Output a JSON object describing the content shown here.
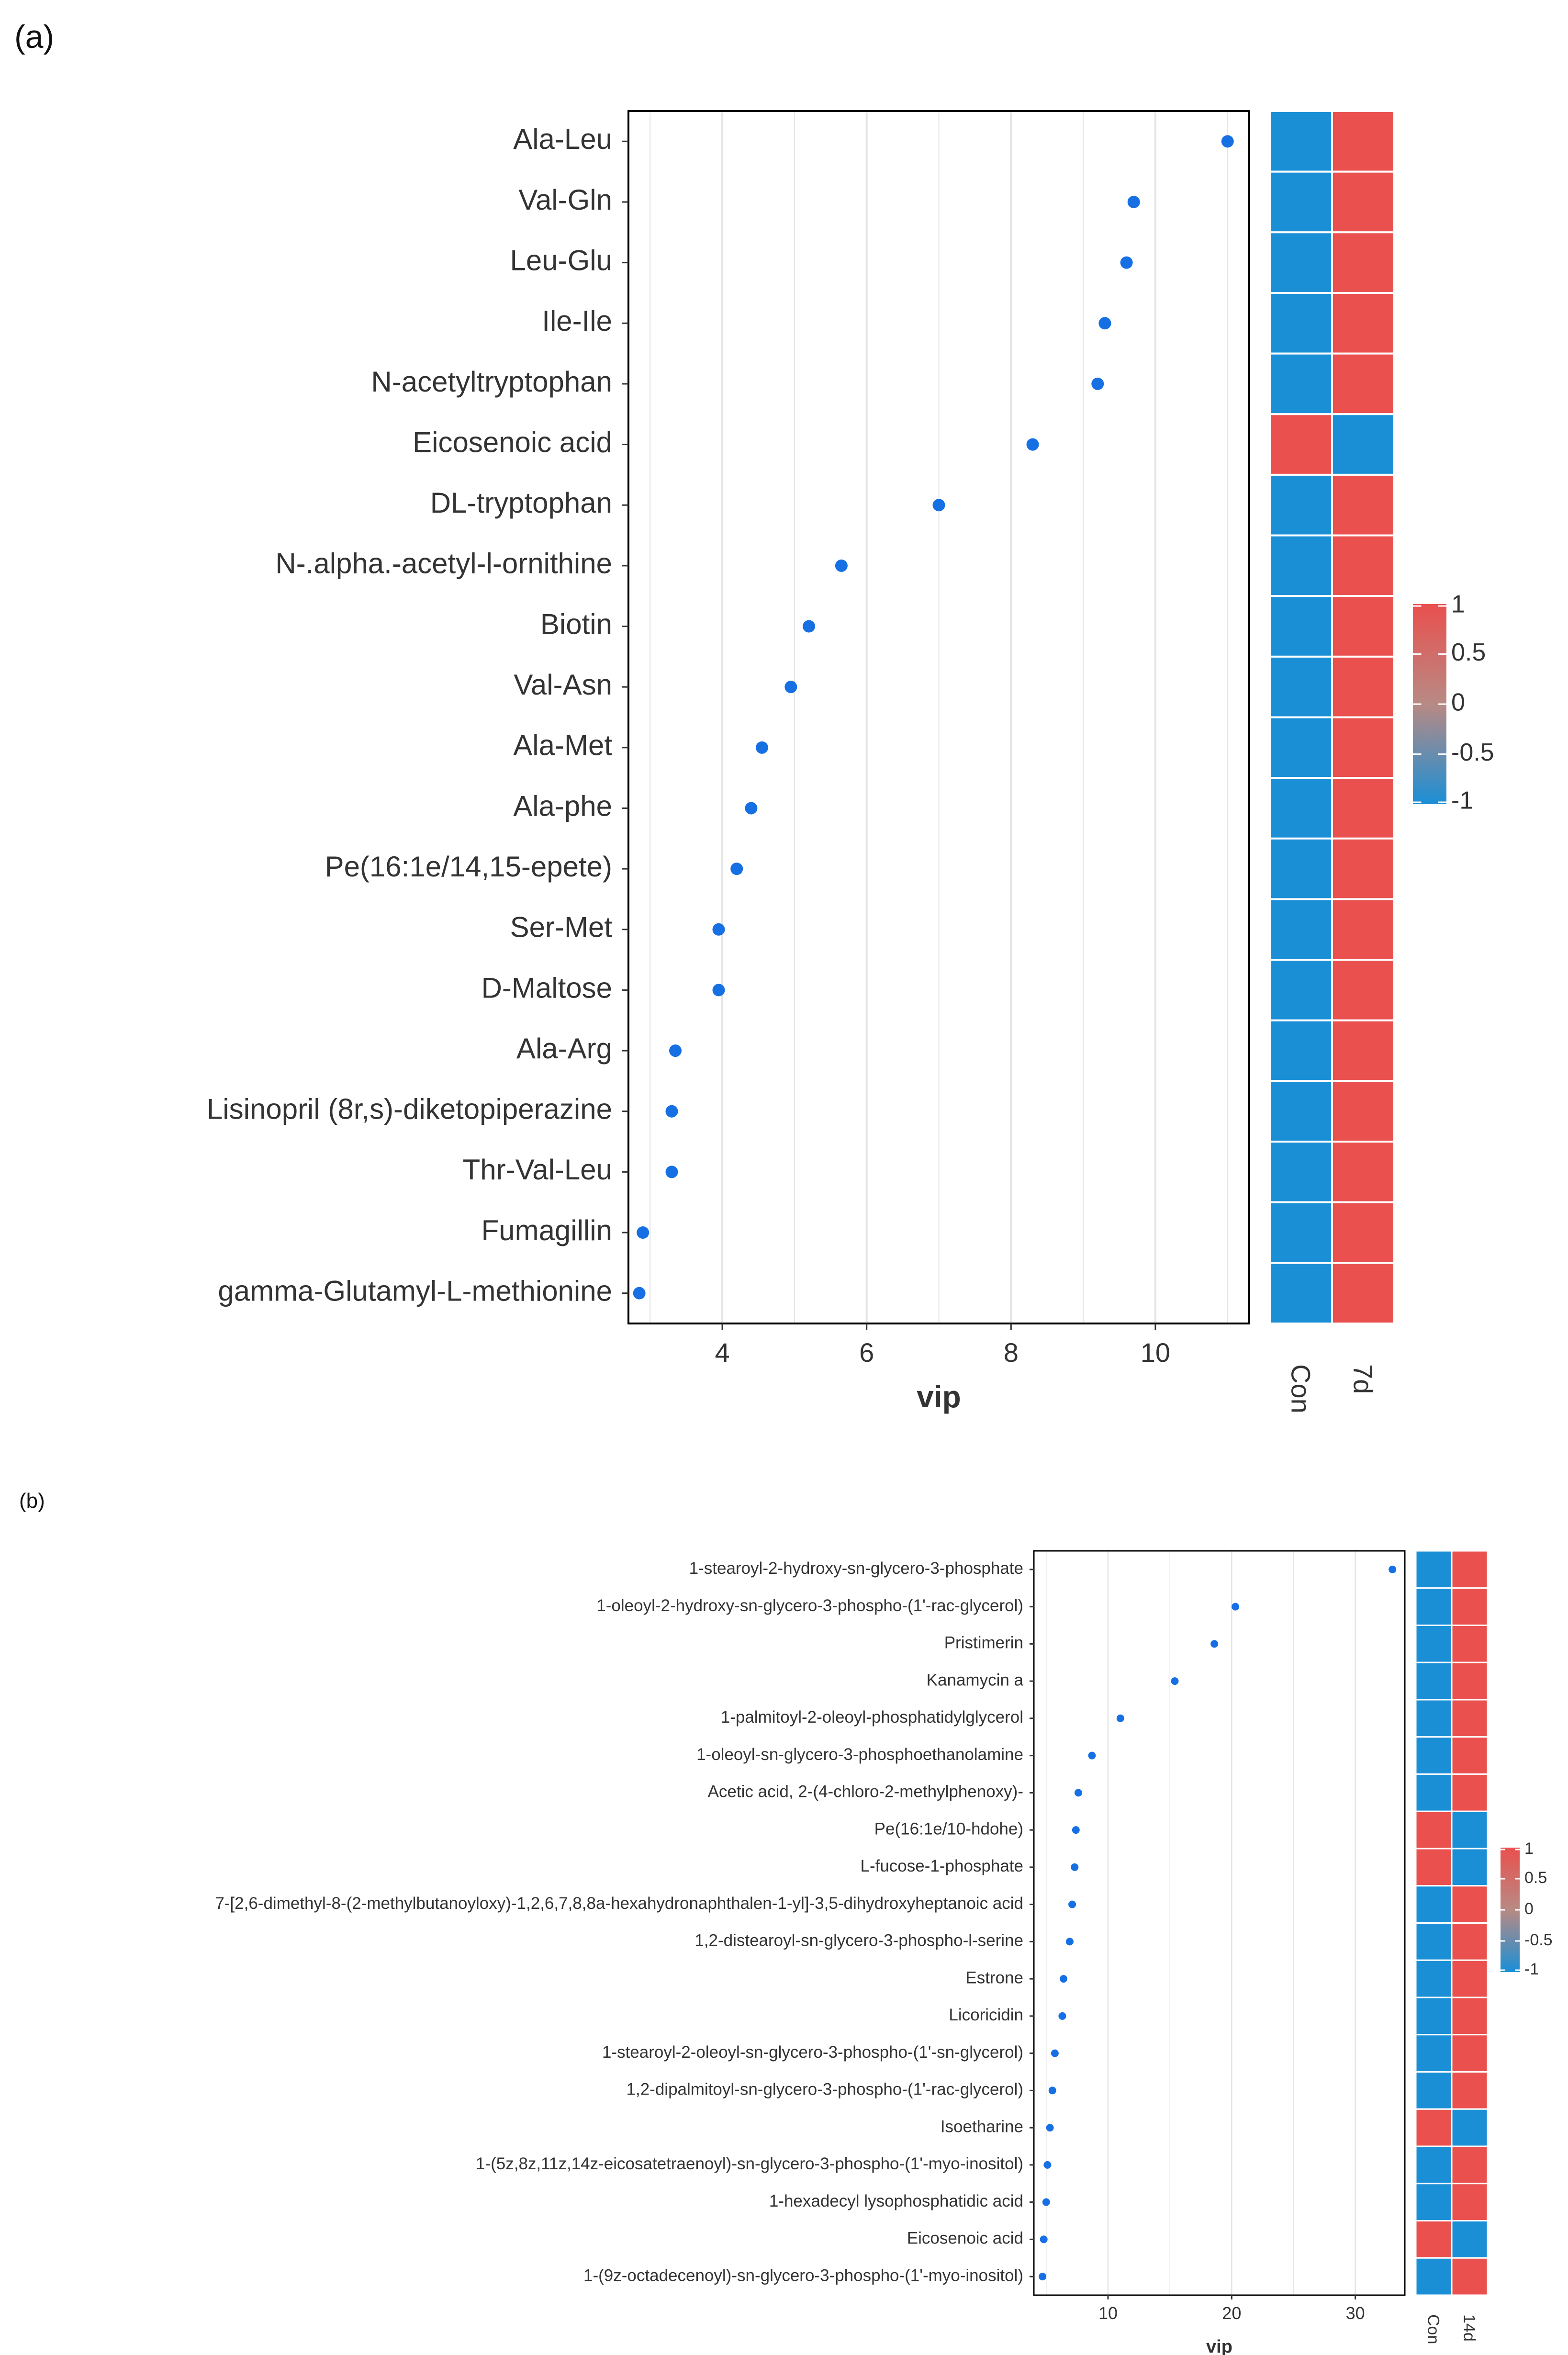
{
  "colors": {
    "point": "#1670E4",
    "heat_high": "#E9504E",
    "heat_low": "#1A8FD6",
    "heat_mid": "#B88A84",
    "grid": "#E4E4E4",
    "text": "#333333",
    "frame": "#000000"
  },
  "chart_data": [
    {
      "type": "scatter",
      "panel_label": "(a)",
      "xlabel": "vip",
      "xlim": [
        2.7,
        11.3
      ],
      "x_ticks": [
        4,
        6,
        8,
        10
      ],
      "x_tick_labels": [
        "4",
        "6",
        "8",
        "10"
      ],
      "grid": true,
      "categories": [
        "Ala-Leu",
        "Val-Gln",
        "Leu-Glu",
        "Ile-Ile",
        "N-acetyltryptophan",
        "Eicosenoic acid",
        "DL-tryptophan",
        "N-.alpha.-acetyl-l-ornithine",
        "Biotin",
        "Val-Asn",
        "Ala-Met",
        "Ala-phe",
        "Pe(16:1e/14,15-epete)",
        "Ser-Met",
        "D-Maltose",
        "Ala-Arg",
        "Lisinopril (8r,s)-diketopiperazine",
        "Thr-Val-Leu",
        "Fumagillin",
        "gamma-Glutamyl-L-methionine"
      ],
      "values": [
        11.0,
        9.7,
        9.6,
        9.3,
        9.2,
        8.3,
        7.0,
        5.65,
        5.2,
        4.95,
        4.55,
        4.4,
        4.2,
        3.95,
        3.95,
        3.35,
        3.3,
        3.3,
        2.9,
        2.85
      ],
      "heatmap": {
        "columns": [
          "Con",
          "7d"
        ],
        "values": [
          [
            -1,
            1
          ],
          [
            -1,
            1
          ],
          [
            -1,
            1
          ],
          [
            -1,
            1
          ],
          [
            -1,
            1
          ],
          [
            1,
            -1
          ],
          [
            -1,
            1
          ],
          [
            -1,
            1
          ],
          [
            -1,
            1
          ],
          [
            -1,
            1
          ],
          [
            -1,
            1
          ],
          [
            -1,
            1
          ],
          [
            -1,
            1
          ],
          [
            -1,
            1
          ],
          [
            -1,
            1
          ],
          [
            -1,
            1
          ],
          [
            -1,
            1
          ],
          [
            -1,
            1
          ],
          [
            -1,
            1
          ],
          [
            -1,
            1
          ]
        ]
      },
      "legend": {
        "position": "right",
        "range": [
          -1,
          1
        ],
        "labels": [
          "1",
          "0.5",
          "0",
          "-0.5",
          "-1"
        ]
      }
    },
    {
      "type": "scatter",
      "panel_label": "(b)",
      "xlabel": "vip",
      "xlim": [
        4.0,
        34.0
      ],
      "x_ticks": [
        10,
        20,
        30
      ],
      "x_tick_labels": [
        "10",
        "20",
        "30"
      ],
      "grid": true,
      "categories": [
        "1-stearoyl-2-hydroxy-sn-glycero-3-phosphate",
        "1-oleoyl-2-hydroxy-sn-glycero-3-phospho-(1'-rac-glycerol)",
        "Pristimerin",
        "Kanamycin a",
        "1-palmitoyl-2-oleoyl-phosphatidylglycerol",
        "1-oleoyl-sn-glycero-3-phosphoethanolamine",
        "Acetic acid, 2-(4-chloro-2-methylphenoxy)-",
        "Pe(16:1e/10-hdohe)",
        "L-fucose-1-phosphate",
        "7-[2,6-dimethyl-8-(2-methylbutanoyloxy)-1,2,6,7,8,8a-hexahydronaphthalen-1-yl]-3,5-dihydroxyheptanoic acid",
        "1,2-distearoyl-sn-glycero-3-phospho-l-serine",
        "Estrone",
        "Licoricidin",
        "1-stearoyl-2-oleoyl-sn-glycero-3-phospho-(1'-sn-glycerol)",
        "1,2-dipalmitoyl-sn-glycero-3-phospho-(1'-rac-glycerol)",
        "Isoetharine",
        "1-(5z,8z,11z,14z-eicosatetraenoyl)-sn-glycero-3-phospho-(1'-myo-inositol)",
        "1-hexadecyl lysophosphatidic acid",
        "Eicosenoic acid",
        "1-(9z-octadecenoyl)-sn-glycero-3-phospho-(1'-myo-inositol)"
      ],
      "values": [
        33.0,
        20.3,
        18.6,
        15.4,
        11.0,
        8.7,
        7.6,
        7.4,
        7.3,
        7.1,
        6.9,
        6.4,
        6.3,
        5.7,
        5.5,
        5.3,
        5.1,
        5.0,
        4.8,
        4.7
      ],
      "heatmap": {
        "columns": [
          "Con",
          "14d"
        ],
        "values": [
          [
            -1,
            1
          ],
          [
            -1,
            1
          ],
          [
            -1,
            1
          ],
          [
            -1,
            1
          ],
          [
            -1,
            1
          ],
          [
            -1,
            1
          ],
          [
            -1,
            1
          ],
          [
            1,
            -1
          ],
          [
            1,
            -1
          ],
          [
            -1,
            1
          ],
          [
            -1,
            1
          ],
          [
            -1,
            1
          ],
          [
            -1,
            1
          ],
          [
            -1,
            1
          ],
          [
            -1,
            1
          ],
          [
            1,
            -1
          ],
          [
            -1,
            1
          ],
          [
            -1,
            1
          ],
          [
            1,
            -1
          ],
          [
            -1,
            1
          ]
        ]
      },
      "legend": {
        "position": "right",
        "range": [
          -1,
          1
        ],
        "labels": [
          "1",
          "0.5",
          "0",
          "-0.5",
          "-1"
        ]
      }
    }
  ]
}
